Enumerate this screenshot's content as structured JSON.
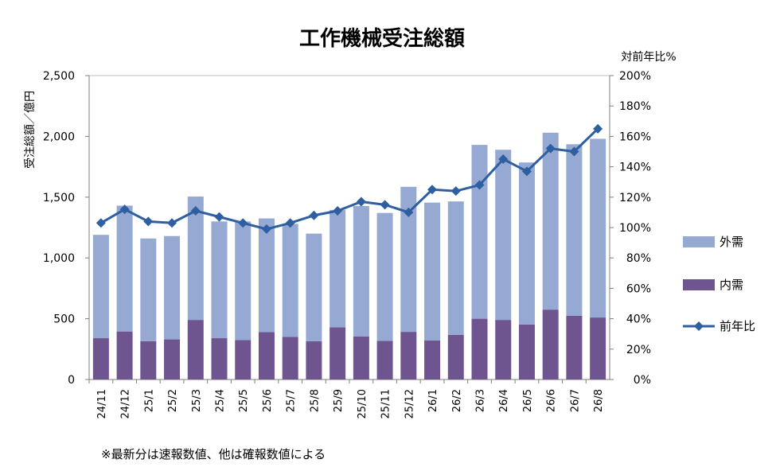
{
  "footnote": "※最新分は速報数値、他は確報数値による",
  "colors": {
    "foreign": "#95A9D3",
    "domestic": "#6F5590",
    "yoy": "#2E5FA0",
    "grid": "#A6A6A6"
  },
  "chart_data": {
    "type": "bar",
    "stacked": true,
    "title": "工作機械受注総額",
    "ylabel": "受注総額／億円",
    "y2label": "対前年比%",
    "ylim": [
      0,
      2500
    ],
    "yticks": [
      "0",
      "500",
      "1,000",
      "1,500",
      "2,000",
      "2,500"
    ],
    "y2lim": [
      0,
      200
    ],
    "y2ticks": [
      "0%",
      "20%",
      "40%",
      "60%",
      "80%",
      "100%",
      "120%",
      "140%",
      "160%",
      "180%",
      "200%"
    ],
    "grid": false,
    "legend_position": "right",
    "categories": [
      "24/11",
      "24/12",
      "25/1",
      "25/2",
      "25/3",
      "25/4",
      "25/5",
      "25/6",
      "25/7",
      "25/8",
      "25/9",
      "25/10",
      "25/11",
      "25/12",
      "26/1",
      "26/2",
      "26/3",
      "26/4",
      "26/5",
      "26/6",
      "26/7",
      "26/8"
    ],
    "series": [
      {
        "name": "内需",
        "kind": "bar",
        "axis": "left",
        "values": [
          340,
          395,
          315,
          330,
          490,
          340,
          325,
          390,
          350,
          315,
          430,
          355,
          318,
          392,
          322,
          368,
          500,
          490,
          452,
          575,
          525,
          510
        ]
      },
      {
        "name": "外需",
        "kind": "bar",
        "axis": "left",
        "values": [
          850,
          1035,
          845,
          850,
          1015,
          960,
          975,
          935,
          930,
          885,
          965,
          1072,
          1052,
          1193,
          1133,
          1097,
          1430,
          1400,
          1333,
          1455,
          1410,
          1470
        ]
      },
      {
        "name": "前年比",
        "kind": "line",
        "axis": "right",
        "values": [
          103,
          112,
          104,
          103,
          111,
          107,
          103,
          99,
          103,
          108,
          111,
          117,
          115,
          110,
          125,
          124,
          128,
          145,
          137,
          152,
          150,
          165
        ]
      }
    ]
  }
}
